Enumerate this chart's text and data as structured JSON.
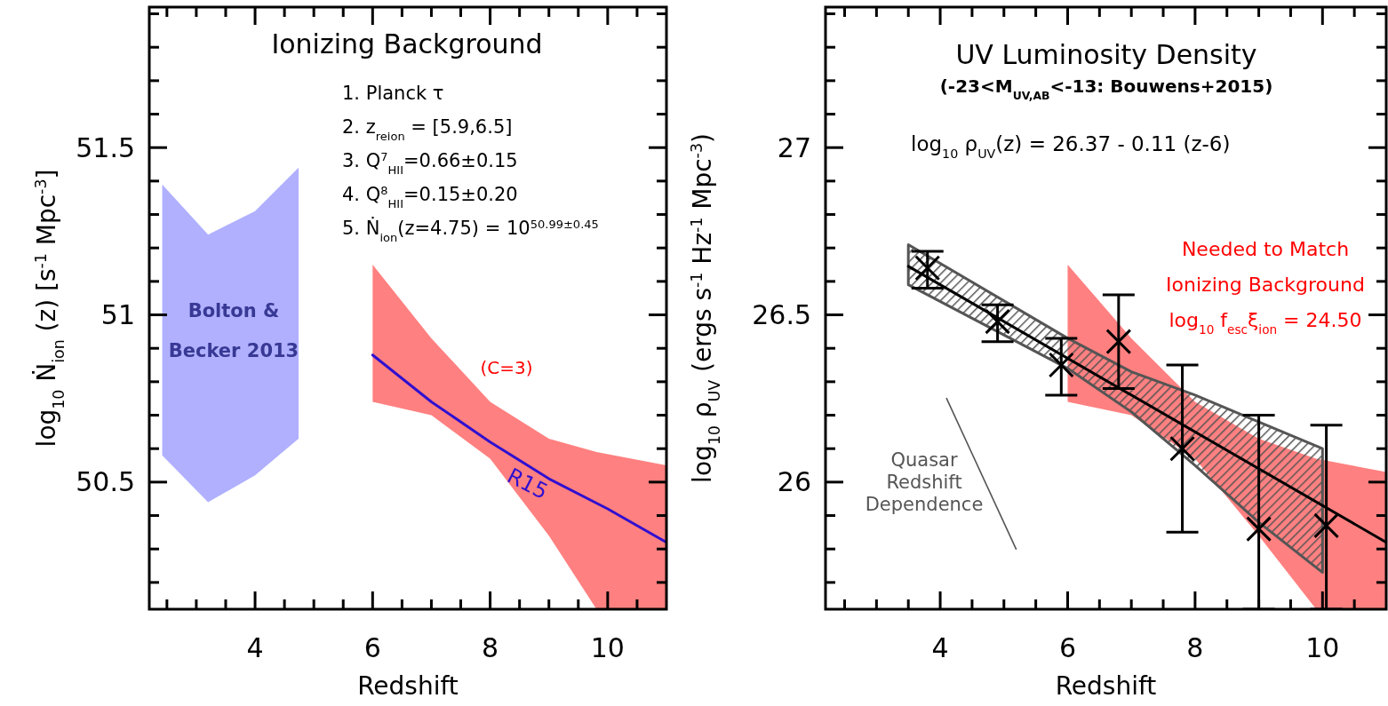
{
  "chart_data": [
    {
      "type": "line",
      "title": "Ionizing Background",
      "xlabel": "Redshift",
      "ylabel": "log$_{10}$ Ṅ$_{ion}$ (z) [s$^{-1}$ Mpc$^{-3}$]",
      "xlim": [
        2.2,
        11
      ],
      "ylim": [
        50.12,
        51.92
      ],
      "xticks": [
        {
          "value": 2.5,
          "label": null
        },
        {
          "value": 3,
          "label": null
        },
        {
          "value": 3.5,
          "label": null
        },
        4,
        {
          "value": 4.5,
          "label": null
        },
        {
          "value": 5,
          "label": null
        },
        {
          "value": 5.5,
          "label": null
        },
        6,
        {
          "value": 6.5,
          "label": null
        },
        {
          "value": 7,
          "label": null
        },
        {
          "value": 7.5,
          "label": null
        },
        8,
        {
          "value": 8.5,
          "label": null
        },
        {
          "value": 9,
          "label": null
        },
        {
          "value": 9.5,
          "label": null
        },
        10,
        {
          "value": 10.5,
          "label": null
        }
      ],
      "yticks": [
        {
          "value": 50.2,
          "label": null
        },
        {
          "value": 50.3,
          "label": null
        },
        {
          "value": 50.4,
          "label": null
        },
        50.5,
        {
          "value": 50.6,
          "label": null
        },
        {
          "value": 50.7,
          "label": null
        },
        {
          "value": 50.8,
          "label": null
        },
        {
          "value": 50.9,
          "label": null
        },
        51,
        {
          "value": 51.1,
          "label": null
        },
        {
          "value": 51.2,
          "label": null
        },
        {
          "value": 51.3,
          "label": null
        },
        {
          "value": 51.4,
          "label": null
        },
        51.5,
        {
          "value": 51.6,
          "label": null
        },
        {
          "value": 51.7,
          "label": null
        },
        {
          "value": 51.8,
          "label": null
        },
        {
          "value": 51.9,
          "label": null
        }
      ],
      "annotations": [
        "1. Planck τ",
        "2. z$_{reion}$ = [5.9,6.5]",
        "3. Q$^{7}$$_{HII}$=0.66±0.15",
        "4. Q$^{8}$$_{HII}$=0.15±0.20",
        "5. Ṅ$_{ion}$(z=4.75) = 10$^{50.99±0.45}$",
        "Bolton &\nBecker 2013"
      ],
      "series": [
        {
          "type": "area",
          "color": "#6060ff",
          "x": [
            2.42,
            3.2,
            4,
            4.74
          ],
          "values": [
            null,
            null,
            null,
            null
          ],
          "upper": [
            51.39,
            51.24,
            51.31,
            51.44
          ],
          "lower": [
            50.58,
            50.44,
            50.52,
            50.63
          ]
        },
        {
          "type": "area",
          "name": "(C=3)",
          "color": "#ff0000",
          "x": [
            6,
            7,
            8,
            9,
            9.81,
            11
          ],
          "values": [
            null,
            null,
            null,
            null,
            null,
            null
          ],
          "upper": [
            51.15,
            50.93,
            50.74,
            50.63,
            50.59,
            50.55
          ],
          "lower": [
            50.74,
            50.7,
            50.57,
            50.34,
            50.12,
            50.12
          ]
        },
        {
          "name": "R15",
          "color": "#3010d0",
          "x": [
            6,
            7,
            8,
            9,
            10,
            11
          ],
          "values": [
            50.88,
            50.74,
            50.62,
            50.51,
            50.42,
            50.32
          ]
        }
      ]
    },
    {
      "type": "line",
      "title": "UV Luminosity Density",
      "subtitle": "(-23<M$_{UV,AB}$<-13: Bouwens+2015)",
      "xlabel": "Redshift",
      "ylabel": "log$_{10}$ ρ$_{UV}$ (ergs s$^{-1}$ Hz$^{-1}$ Mpc$^{-3}$)",
      "xlim": [
        2.2,
        11
      ],
      "ylim": [
        25.62,
        27.42
      ],
      "xticks": [
        {
          "value": 2.5,
          "label": null
        },
        {
          "value": 3,
          "label": null
        },
        {
          "value": 3.5,
          "label": null
        },
        4,
        {
          "value": 4.5,
          "label": null
        },
        {
          "value": 5,
          "label": null
        },
        {
          "value": 5.5,
          "label": null
        },
        6,
        {
          "value": 6.5,
          "label": null
        },
        {
          "value": 7,
          "label": null
        },
        {
          "value": 7.5,
          "label": null
        },
        8,
        {
          "value": 8.5,
          "label": null
        },
        {
          "value": 9,
          "label": null
        },
        {
          "value": 9.5,
          "label": null
        },
        10,
        {
          "value": 10.5,
          "label": null
        }
      ],
      "yticks": [
        {
          "value": 25.7,
          "label": null
        },
        {
          "value": 25.8,
          "label": null
        },
        {
          "value": 25.9,
          "label": null
        },
        26,
        {
          "value": 26.1,
          "label": null
        },
        {
          "value": 26.2,
          "label": null
        },
        {
          "value": 26.3,
          "label": null
        },
        {
          "value": 26.4,
          "label": null
        },
        26.5,
        {
          "value": 26.6,
          "label": null
        },
        {
          "value": 26.7,
          "label": null
        },
        {
          "value": 26.8,
          "label": null
        },
        {
          "value": 26.9,
          "label": null
        },
        27,
        {
          "value": 27.1,
          "label": null
        },
        {
          "value": 27.2,
          "label": null
        },
        {
          "value": 27.3,
          "label": null
        },
        {
          "value": 27.4,
          "label": null
        }
      ],
      "annotations": [
        "log$_{10}$ ρ$_{UV}$(z) = 26.37 - 0.11 (z-6)"
      ],
      "series": [
        {
          "type": "area",
          "name": "Needed to Match\nIonizing Background\nlog$_{10}$ f$_{esc}$ξ$_{ion}$ = 24.50",
          "color": "#ff0000",
          "x": [
            6,
            7,
            8,
            9,
            9.9,
            11
          ],
          "values": [
            null,
            null,
            null,
            null,
            null,
            null
          ],
          "upper": [
            26.65,
            26.43,
            26.24,
            26.13,
            26.07,
            26.03
          ],
          "lower": [
            26.24,
            26.2,
            26.07,
            25.84,
            25.62,
            25.62
          ]
        },
        {
          "type": "area",
          "line_style": "solid",
          "color": "#555555",
          "x": [
            3.5,
            6,
            7,
            8,
            9,
            10
          ],
          "values": [
            null,
            null,
            null,
            null,
            null,
            null
          ],
          "upper": [
            26.71,
            26.43,
            26.33,
            26.26,
            26.18,
            26.1
          ],
          "lower": [
            26.59,
            26.34,
            26.21,
            26.05,
            25.88,
            25.73
          ]
        },
        {
          "name": "Quasar\nRedshift\nDependence",
          "color": "#555555",
          "x": [
            4.1,
            5.19
          ],
          "values": [
            26.25,
            25.8
          ]
        },
        {
          "color": "#000000",
          "x": [
            3.5,
            11
          ],
          "values": [
            26.645,
            25.82
          ]
        },
        {
          "type": "scatter",
          "marker": "cross",
          "color": "#000000",
          "x": [
            3.8,
            4.9,
            5.9,
            6.8,
            7.8,
            9.0,
            10.06
          ],
          "values": [
            26.64,
            26.48,
            26.35,
            26.42,
            26.1,
            25.86,
            25.87
          ],
          "errors": [
            [
              26.58,
              26.69
            ],
            [
              26.42,
              26.53
            ],
            [
              26.26,
              26.43
            ],
            [
              26.28,
              26.56
            ],
            [
              25.85,
              26.35
            ],
            [
              25.62,
              26.2
            ],
            [
              25.62,
              26.17
            ]
          ]
        }
      ]
    }
  ]
}
